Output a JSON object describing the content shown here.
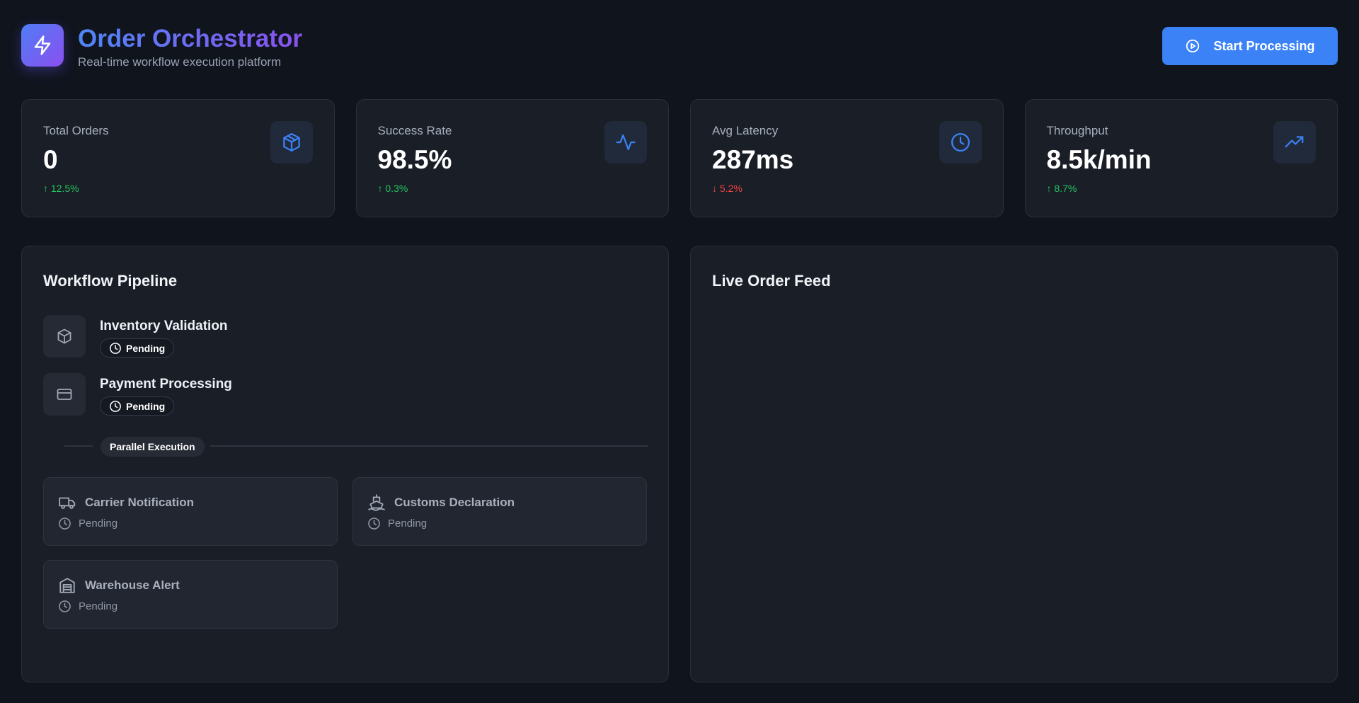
{
  "header": {
    "title": "Order Orchestrator",
    "subtitle": "Real-time workflow execution platform",
    "logo_icon": "lightning-icon",
    "start_button": {
      "label": "Start Processing",
      "icon": "play-circle-icon"
    }
  },
  "stats": [
    {
      "label": "Total Orders",
      "value": "0",
      "change": "↑ 12.5%",
      "direction": "up",
      "icon": "package-icon"
    },
    {
      "label": "Success Rate",
      "value": "98.5%",
      "change": "↑ 0.3%",
      "direction": "up",
      "icon": "activity-icon"
    },
    {
      "label": "Avg Latency",
      "value": "287ms",
      "change": "↓ 5.2%",
      "direction": "down",
      "icon": "clock-icon"
    },
    {
      "label": "Throughput",
      "value": "8.5k/min",
      "change": "↑ 8.7%",
      "direction": "up",
      "icon": "trending-up-icon"
    }
  ],
  "pipeline": {
    "title": "Workflow Pipeline",
    "steps": [
      {
        "name": "Inventory Validation",
        "status": "Pending",
        "icon": "package-icon"
      },
      {
        "name": "Payment Processing",
        "status": "Pending",
        "icon": "credit-card-icon"
      }
    ],
    "parallel_label": "Parallel Execution",
    "parallel_tasks": [
      {
        "name": "Carrier Notification",
        "status": "Pending",
        "icon": "truck-icon"
      },
      {
        "name": "Customs Declaration",
        "status": "Pending",
        "icon": "ship-icon"
      },
      {
        "name": "Warehouse Alert",
        "status": "Pending",
        "icon": "warehouse-icon"
      }
    ]
  },
  "feed": {
    "title": "Live Order Feed"
  },
  "colors": {
    "background": "#10141d",
    "card": "#1a1e27",
    "accent": "#3b82f6",
    "gradient_start": "#4f86f7",
    "gradient_end": "#8a52ee",
    "up": "#22c55e",
    "down": "#ef4444"
  }
}
